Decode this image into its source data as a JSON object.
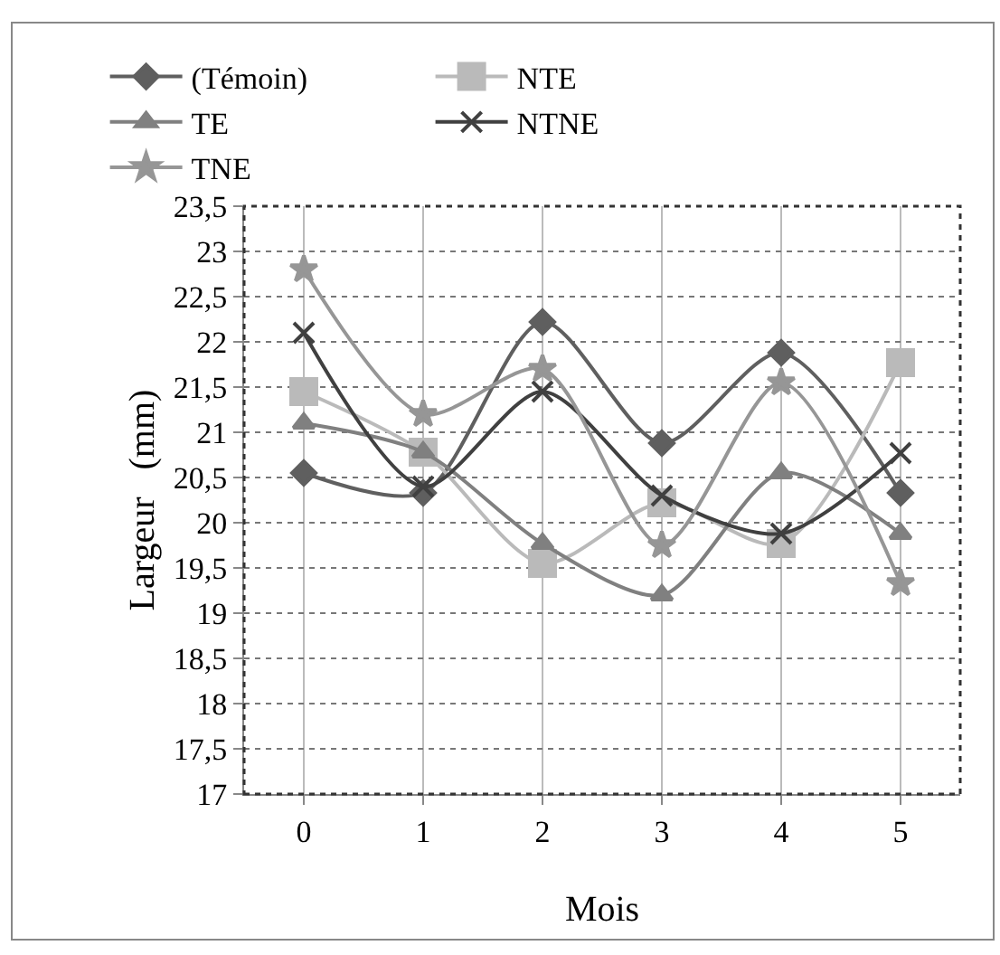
{
  "chart_data": {
    "type": "line",
    "xlabel": "Mois",
    "ylabel": "Largeur   (mm)",
    "categories": [
      "0",
      "1",
      "2",
      "3",
      "4",
      "5"
    ],
    "series": [
      {
        "name": "(Témoin)",
        "color": "#5f5f5f",
        "marker": "diamond",
        "values": [
          20.55,
          20.33,
          22.22,
          20.88,
          21.88,
          20.33
        ]
      },
      {
        "name": "NTE",
        "color": "#bababa",
        "marker": "square",
        "values": [
          21.45,
          20.78,
          19.55,
          20.22,
          19.77,
          21.77
        ]
      },
      {
        "name": "TE",
        "color": "#808080",
        "marker": "triangle",
        "values": [
          21.1,
          20.78,
          19.77,
          19.2,
          20.55,
          19.88
        ]
      },
      {
        "name": "NTNE",
        "color": "#404040",
        "marker": "cross",
        "values": [
          22.1,
          20.4,
          21.45,
          20.3,
          19.88,
          20.77
        ]
      },
      {
        "name": "TNE",
        "color": "#969696",
        "marker": "star",
        "values": [
          22.8,
          21.2,
          21.7,
          19.75,
          21.55,
          19.33
        ]
      }
    ],
    "ylim": [
      17,
      23.5
    ],
    "yticks": [
      17,
      {
        "value": 17.5,
        "label": "17,5"
      },
      18,
      {
        "value": 18.5,
        "label": "18,5"
      },
      19,
      {
        "value": 19.5,
        "label": "19,5"
      },
      20,
      {
        "value": 20.5,
        "label": "20,5"
      },
      21,
      {
        "value": 21.5,
        "label": "21,5"
      },
      22,
      {
        "value": 22.5,
        "label": "22,5"
      },
      23,
      {
        "value": 23.5,
        "label": "23,5"
      }
    ],
    "grid": true,
    "legend": "top"
  }
}
